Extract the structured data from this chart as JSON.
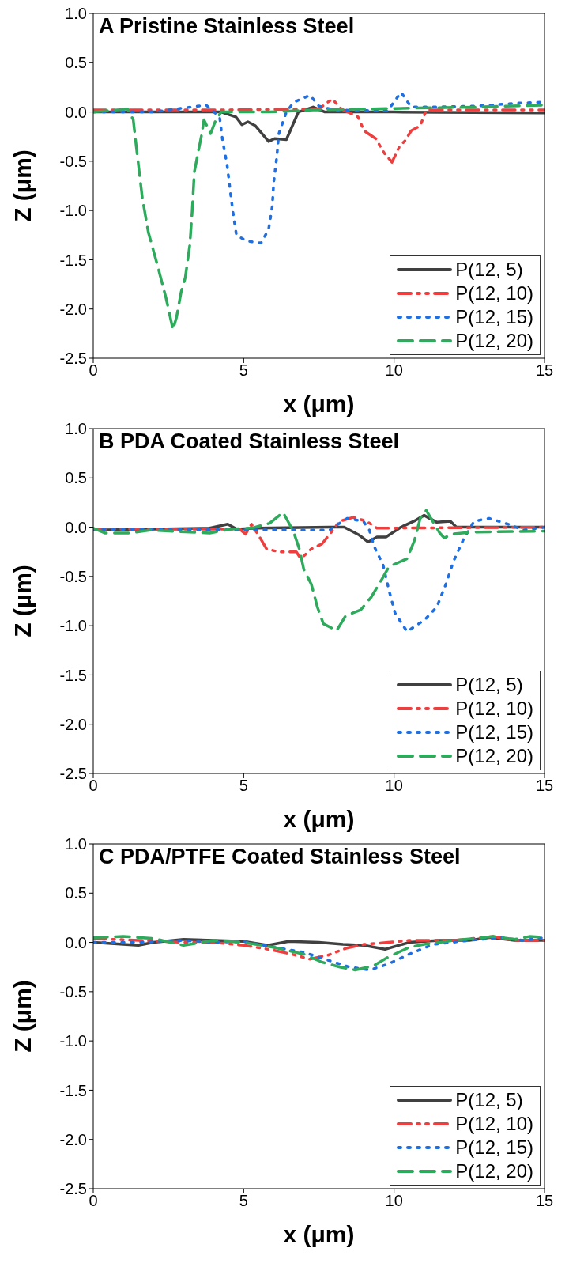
{
  "chart_data": [
    {
      "type": "line",
      "title": "A Pristine Stainless Steel",
      "xlabel": "x (μm)",
      "ylabel": "Z (μm)",
      "xlim": [
        0,
        15
      ],
      "xticks": [
        0,
        5,
        10,
        15
      ],
      "ylim": [
        -2.5,
        1.0
      ],
      "yticks": [
        -2.5,
        {
          "value": -2,
          "label": "-2.0"
        },
        -1.5,
        {
          "value": -1,
          "label": "-1.0"
        },
        -0.5,
        {
          "value": 0,
          "label": "0.0"
        },
        0.5,
        {
          "value": 1,
          "label": "1.0"
        }
      ],
      "legend": "bottom right",
      "marker": "none",
      "series": [
        {
          "name": "P(12, 5)",
          "color": "#404040",
          "line_style": "solid",
          "x": [
            0,
            2,
            4.25,
            4.74,
            4.94,
            5.14,
            5.39,
            5.58,
            5.83,
            6.03,
            6.42,
            6.82,
            7.31,
            7.7,
            10,
            15
          ],
          "values": [
            0,
            0,
            0,
            -0.05,
            -0.13,
            -0.1,
            -0.14,
            -0.21,
            -0.3,
            -0.27,
            -0.28,
            0,
            0.05,
            0,
            0,
            -0.01
          ]
        },
        {
          "name": "P(12, 10)",
          "color": "#ef3e3e",
          "line_style": "dashdot",
          "x": [
            0,
            2,
            4,
            7.5,
            7.8,
            7.95,
            8.25,
            8.8,
            9.0,
            9.39,
            9.68,
            9.93,
            10.18,
            10.37,
            10.57,
            10.87,
            11.07,
            13,
            15
          ],
          "values": [
            0.02,
            0.02,
            0.02,
            0.03,
            0.1,
            0.13,
            0.03,
            -0.05,
            -0.19,
            -0.27,
            -0.42,
            -0.51,
            -0.35,
            -0.29,
            -0.19,
            -0.14,
            0.02,
            0.02,
            0.02
          ]
        },
        {
          "name": "P(12, 15)",
          "color": "#1f6fe0",
          "line_style": "dotted",
          "x": [
            0,
            2,
            3.75,
            4.2,
            4.3,
            4.45,
            4.55,
            4.64,
            4.76,
            5.09,
            5.58,
            5.83,
            5.95,
            6.0,
            6.1,
            6.17,
            6.42,
            6.67,
            7.21,
            7.5,
            8.0,
            9.78,
            10.23,
            10.57,
            11.36,
            12.75,
            14.13,
            15
          ],
          "values": [
            0,
            0,
            0.07,
            -0.05,
            -0.29,
            -0.54,
            -0.79,
            -1.01,
            -1.25,
            -1.31,
            -1.33,
            -1.19,
            -0.96,
            -0.71,
            -0.46,
            -0.22,
            0,
            0.1,
            0.17,
            0.06,
            0.02,
            0.01,
            0.2,
            0.05,
            0.05,
            0.06,
            0.09,
            0.1
          ]
        },
        {
          "name": "P(12, 20)",
          "color": "#2eaa5c",
          "line_style": "dashed",
          "x": [
            0,
            1.14,
            1.33,
            1.43,
            1.48,
            1.63,
            1.83,
            2.12,
            2.42,
            2.65,
            2.77,
            2.92,
            3.06,
            3.21,
            3.29,
            3.36,
            3.46,
            3.61,
            3.68,
            3.9,
            4.05,
            4.25,
            5.83,
            7.31,
            10.77,
            12.75,
            15
          ],
          "values": [
            0,
            0.03,
            -0.08,
            -0.35,
            -0.48,
            -0.87,
            -1.22,
            -1.54,
            -1.89,
            -2.21,
            -2.08,
            -1.83,
            -1.68,
            -1.35,
            -1.0,
            -0.61,
            -0.45,
            -0.22,
            -0.08,
            -0.22,
            -0.1,
            0,
            0,
            0.02,
            0.04,
            0.05,
            0.07
          ]
        }
      ]
    },
    {
      "type": "line",
      "title": "B PDA Coated Stainless Steel",
      "xlabel": "x (μm)",
      "ylabel": "Z (μm)",
      "xlim": [
        0,
        15
      ],
      "xticks": [
        0,
        5,
        10,
        15
      ],
      "ylim": [
        -2.5,
        1.0
      ],
      "yticks": [
        -2.5,
        {
          "value": -2,
          "label": "-2.0"
        },
        -1.5,
        {
          "value": -1,
          "label": "-1.0"
        },
        -0.5,
        {
          "value": 0,
          "label": "0.0"
        },
        0.5,
        {
          "value": 1,
          "label": "1.0"
        }
      ],
      "legend": "bottom right",
      "marker": "none",
      "series": [
        {
          "name": "P(12, 5)",
          "color": "#404040",
          "line_style": "solid",
          "x": [
            0,
            3.87,
            4.47,
            4.77,
            5.46,
            7.85,
            8.34,
            8.84,
            9.14,
            9.43,
            9.73,
            10.23,
            10.72,
            11.0,
            11.42,
            11.87,
            12.07,
            15
          ],
          "values": [
            -0.03,
            -0.01,
            0.03,
            -0.02,
            -0.01,
            0,
            0,
            -0.08,
            -0.15,
            -0.1,
            -0.1,
            0,
            0.07,
            0.12,
            0.05,
            0.06,
            0,
            0
          ]
        },
        {
          "name": "P(12, 10)",
          "color": "#ef3e3e",
          "line_style": "dashdot",
          "x": [
            0,
            4.87,
            5.06,
            5.26,
            5.51,
            5.76,
            6.16,
            6.75,
            6.9,
            7.25,
            7.6,
            7.94,
            8.19,
            8.64,
            9.09,
            9.43,
            15
          ],
          "values": [
            -0.02,
            -0.02,
            -0.07,
            0.03,
            -0.09,
            -0.22,
            -0.25,
            -0.25,
            -0.32,
            -0.22,
            -0.17,
            -0.04,
            0.06,
            0.1,
            0.06,
            -0.01,
            0
          ]
        },
        {
          "name": "P(12, 15)",
          "color": "#1f6fe0",
          "line_style": "dotted",
          "x": [
            0,
            7.85,
            8.14,
            8.44,
            8.98,
            9.18,
            9.33,
            9.63,
            9.83,
            10.03,
            10.43,
            11.02,
            11.42,
            11.72,
            11.97,
            12.31,
            12.66,
            13.16,
            13.8,
            14.3,
            15
          ],
          "values": [
            -0.02,
            -0.03,
            0.03,
            0.09,
            0.06,
            -0.03,
            -0.19,
            -0.38,
            -0.64,
            -0.87,
            -1.06,
            -0.94,
            -0.81,
            -0.58,
            -0.35,
            -0.12,
            0.06,
            0.09,
            0.03,
            -0.03,
            0
          ]
        },
        {
          "name": "P(12, 20)",
          "color": "#2eaa5c",
          "line_style": "dashed",
          "x": [
            0,
            0.4,
            1.19,
            1.89,
            3.87,
            4.57,
            5.26,
            5.86,
            6.31,
            6.65,
            6.85,
            7.0,
            7.25,
            7.45,
            7.65,
            8.09,
            8.39,
            8.89,
            9.24,
            9.63,
            9.83,
            10.43,
            10.67,
            10.87,
            11.07,
            11.52,
            11.67,
            11.92,
            12.61,
            15
          ],
          "values": [
            -0.01,
            -0.06,
            -0.06,
            -0.03,
            -0.06,
            -0.02,
            -0.01,
            0.04,
            0.15,
            -0.04,
            -0.22,
            -0.43,
            -0.58,
            -0.81,
            -0.98,
            -1.05,
            -0.9,
            -0.84,
            -0.71,
            -0.51,
            -0.4,
            -0.32,
            -0.14,
            0.09,
            0.17,
            -0.06,
            -0.11,
            -0.07,
            -0.05,
            -0.04
          ]
        }
      ]
    },
    {
      "type": "line",
      "title": "C PDA/PTFE Coated Stainless Steel",
      "xlabel": "x (μm)",
      "ylabel": "Z (μm)",
      "xlim": [
        0,
        15
      ],
      "xticks": [
        0,
        5,
        10,
        15
      ],
      "ylim": [
        -2.5,
        1.0
      ],
      "yticks": [
        -2.5,
        {
          "value": -2,
          "label": "-2.0"
        },
        -1.5,
        {
          "value": -1,
          "label": "-1.0"
        },
        -0.5,
        {
          "value": 0,
          "label": "0.0"
        },
        0.5,
        {
          "value": 1,
          "label": "1.0"
        }
      ],
      "legend": "bottom right",
      "marker": "none",
      "series": [
        {
          "name": "P(12, 5)",
          "color": "#404040",
          "line_style": "solid",
          "x": [
            0,
            1,
            1.5,
            2,
            3,
            4,
            5,
            5.8,
            6.5,
            7.5,
            8.3,
            9,
            9.7,
            10.5,
            11.5,
            12.5,
            13.2,
            14,
            15
          ],
          "values": [
            0,
            -0.02,
            -0.03,
            0,
            0.03,
            0.02,
            0.01,
            -0.03,
            0.01,
            0,
            -0.02,
            -0.03,
            -0.07,
            0,
            0.02,
            0.02,
            0.05,
            0.02,
            0.02
          ]
        },
        {
          "name": "P(12, 10)",
          "color": "#ef3e3e",
          "line_style": "dashdot",
          "x": [
            0,
            1.5,
            3,
            4,
            5,
            6,
            6.6,
            7.2,
            7.8,
            8.4,
            9,
            9.8,
            10.5,
            12,
            13.3,
            14,
            15
          ],
          "values": [
            0.04,
            0.02,
            0,
            0,
            -0.03,
            -0.08,
            -0.12,
            -0.17,
            -0.13,
            -0.06,
            -0.02,
            0,
            0.02,
            0.02,
            0.06,
            0.02,
            0.02
          ]
        },
        {
          "name": "P(12, 15)",
          "color": "#1f6fe0",
          "line_style": "dotted",
          "x": [
            0,
            1.5,
            3,
            4,
            5,
            6,
            7,
            8,
            8.5,
            9.2,
            9.8,
            10.5,
            11.3,
            12.5,
            13.5,
            14.3,
            15
          ],
          "values": [
            0,
            0,
            0.02,
            0,
            0.01,
            -0.05,
            -0.1,
            -0.2,
            -0.25,
            -0.28,
            -0.22,
            -0.12,
            -0.02,
            0.02,
            0.05,
            0.02,
            0.05
          ]
        },
        {
          "name": "P(12, 20)",
          "color": "#2eaa5c",
          "line_style": "dashed",
          "x": [
            0,
            1,
            2,
            3,
            4,
            5,
            6,
            7,
            7.6,
            8.2,
            8.7,
            9.3,
            9.8,
            10.5,
            11,
            12,
            13.3,
            14,
            14.5,
            15
          ],
          "values": [
            0.05,
            0.06,
            0.04,
            -0.03,
            0.02,
            0,
            -0.05,
            -0.12,
            -0.2,
            -0.25,
            -0.28,
            -0.24,
            -0.15,
            -0.05,
            -0.02,
            0.02,
            0.06,
            0.03,
            0.06,
            0.05
          ]
        }
      ]
    }
  ]
}
